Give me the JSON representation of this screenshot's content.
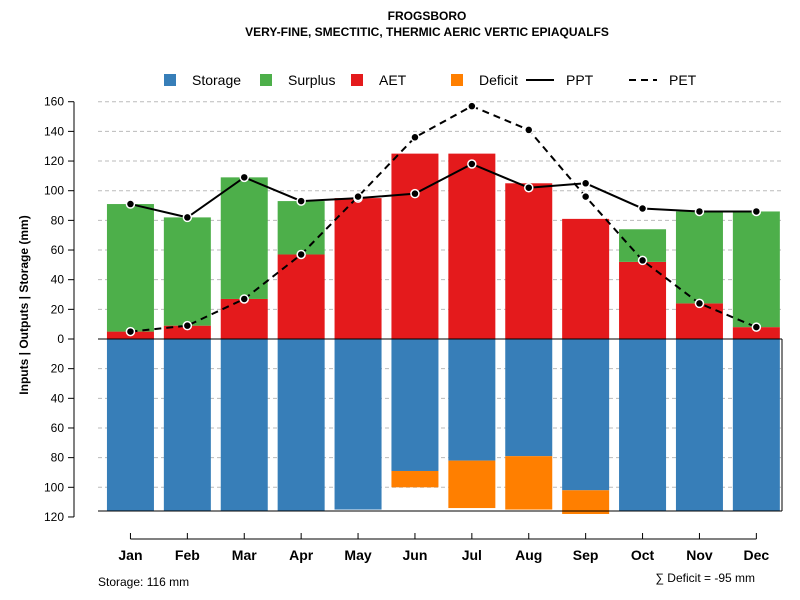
{
  "chart_data": {
    "type": "bar",
    "title": "FROGSBORO",
    "subtitle": "VERY-FINE, SMECTITIC, THERMIC AERIC VERTIC EPIAQUALFS",
    "ylabel": "Inputs | Outputs | Storage    (mm)",
    "xlabel": "",
    "categories": [
      "Jan",
      "Feb",
      "Mar",
      "Apr",
      "May",
      "Jun",
      "Jul",
      "Aug",
      "Sep",
      "Oct",
      "Nov",
      "Dec"
    ],
    "ylim": [
      -120,
      160
    ],
    "yticks": [
      160,
      140,
      120,
      100,
      80,
      60,
      40,
      20,
      0,
      -20,
      -40,
      -60,
      -80,
      -100,
      -120
    ],
    "ytick_labels": [
      "160",
      "140",
      "120",
      "100",
      "80",
      "60",
      "40",
      "20",
      "0",
      "20",
      "40",
      "60",
      "80",
      "100",
      "120"
    ],
    "grid": true,
    "legend_position": "top",
    "legend": [
      {
        "label": "Storage",
        "kind": "box",
        "color": "#377EB8"
      },
      {
        "label": "Surplus",
        "kind": "box",
        "color": "#4DAF4A"
      },
      {
        "label": "AET",
        "kind": "box",
        "color": "#E41A1C"
      },
      {
        "label": "Deficit",
        "kind": "box",
        "color": "#FF7F00"
      },
      {
        "label": "PPT",
        "kind": "solid-line",
        "color": "#000000"
      },
      {
        "label": "PET",
        "kind": "dashed-line",
        "color": "#000000"
      }
    ],
    "colors": {
      "storage": "#377EB8",
      "surplus": "#4DAF4A",
      "aet": "#E41A1C",
      "deficit": "#FF7F00"
    },
    "series": [
      {
        "name": "AET",
        "values": [
          5,
          9,
          27,
          57,
          95,
          125,
          125,
          105,
          81,
          52,
          24,
          8
        ]
      },
      {
        "name": "Surplus",
        "values": [
          86,
          73,
          82,
          36,
          0,
          0,
          0,
          0,
          0,
          22,
          62,
          78
        ]
      },
      {
        "name": "Storage",
        "values": [
          116,
          116,
          116,
          116,
          115,
          89,
          82,
          79,
          102,
          116,
          116,
          116
        ]
      },
      {
        "name": "Deficit",
        "values": [
          0,
          0,
          0,
          0,
          0,
          -11,
          -32,
          -36,
          -16,
          0,
          0,
          0
        ]
      },
      {
        "name": "PPT",
        "values": [
          91,
          82,
          109,
          93,
          95,
          98,
          118,
          102,
          105,
          88,
          86,
          86
        ]
      },
      {
        "name": "PET",
        "values": [
          5,
          9,
          27,
          57,
          96,
          136,
          157,
          141,
          96,
          53,
          24,
          8
        ]
      }
    ],
    "storage_capacity": 116,
    "annotations": {
      "storage_note": "Storage: 116 mm",
      "deficit_note": "∑ Deficit = -95 mm"
    }
  }
}
